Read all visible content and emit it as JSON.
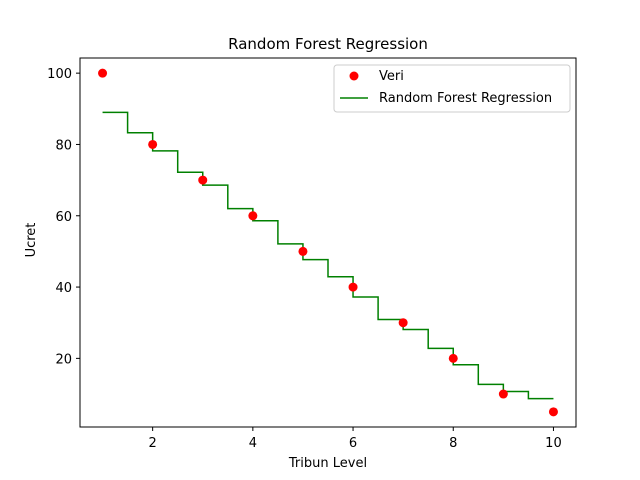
{
  "chart_data": {
    "type": "scatter",
    "title": "Random Forest Regression",
    "xlabel": "Tribun Level",
    "ylabel": "Ucret",
    "xlim": [
      0.55,
      10.45
    ],
    "ylim": [
      0.75,
      104.25
    ],
    "xticks": [
      2,
      4,
      6,
      8,
      10
    ],
    "yticks": [
      20,
      40,
      60,
      80,
      100
    ],
    "grid": false,
    "legend_position": "top-right",
    "scatter_series": {
      "name": "Veri",
      "color": "#ff0000",
      "x": [
        1,
        2,
        3,
        4,
        5,
        6,
        7,
        8,
        9,
        10
      ],
      "y": [
        100,
        80,
        70,
        60,
        50,
        40,
        30,
        20,
        10,
        5
      ]
    },
    "line_series": {
      "name": "Random Forest Regression",
      "color": "#008000",
      "step_x": [
        1.0,
        1.5,
        2.0,
        2.5,
        3.0,
        3.5,
        4.0,
        4.5,
        5.0,
        5.5,
        6.0,
        6.5,
        7.0,
        7.5,
        8.0,
        8.5,
        9.0,
        9.5,
        10.0
      ],
      "step_y": [
        89,
        83.3,
        78.2,
        72.2,
        68.6,
        62,
        58.6,
        52.1,
        47.7,
        42.9,
        37.2,
        30.9,
        28.1,
        22.8,
        18.2,
        12.7,
        10.7,
        8.7,
        8.7
      ]
    }
  }
}
